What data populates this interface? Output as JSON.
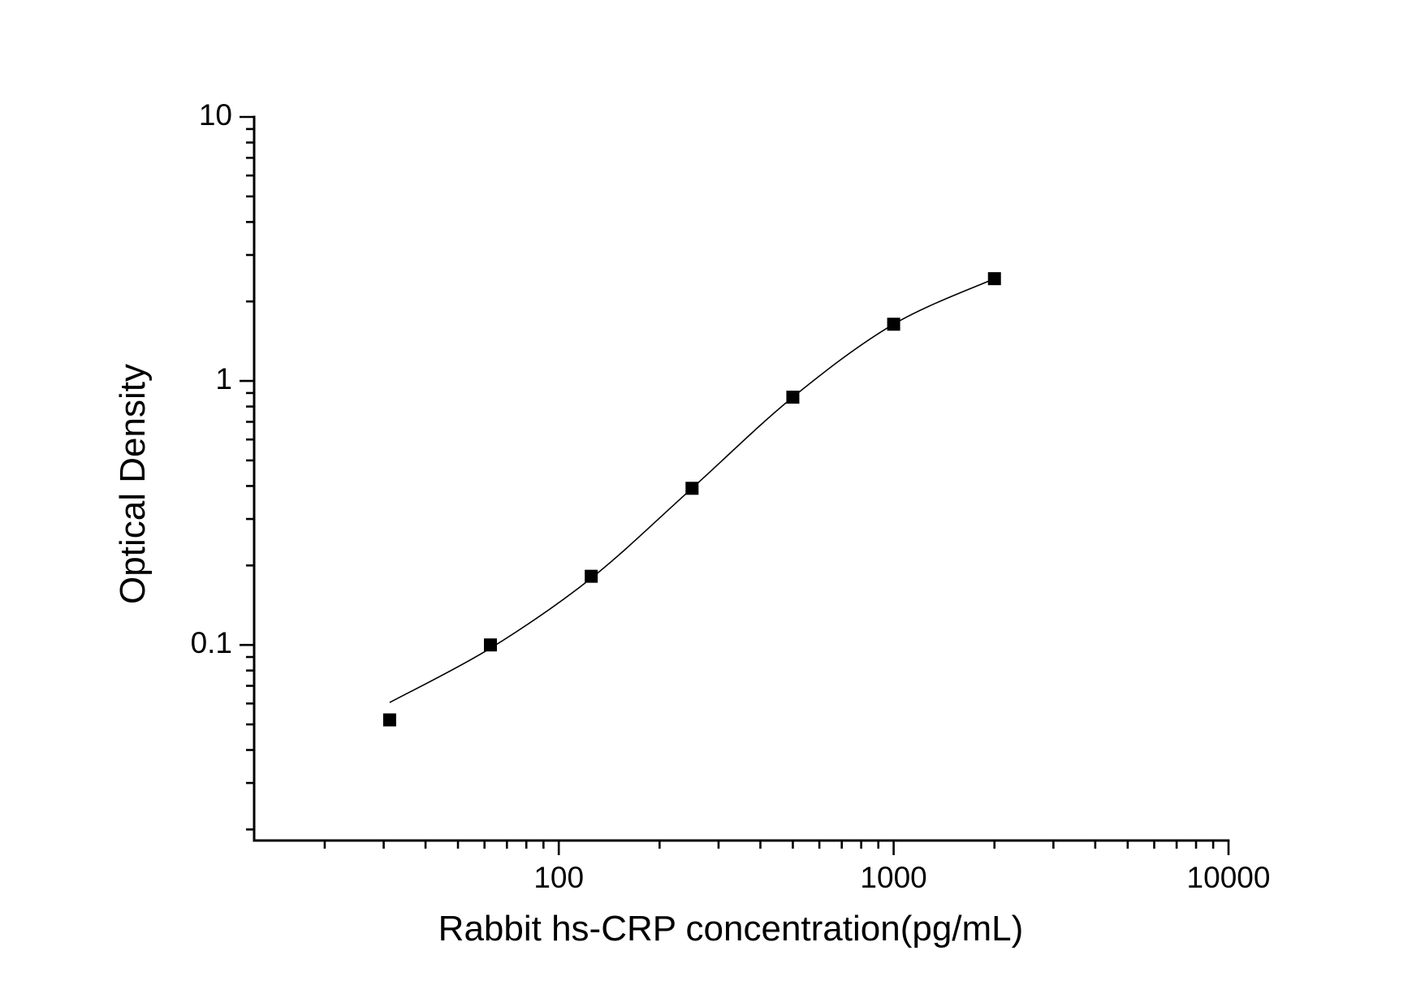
{
  "chart_data": {
    "type": "scatter",
    "title": "",
    "xlabel": "Rabbit hs-CRP concentration(pg/mL)",
    "ylabel": "Optical Density",
    "x_scale": "log",
    "y_scale": "log",
    "xlim": [
      12.31,
      10000
    ],
    "ylim": [
      0.01816,
      10
    ],
    "grid": false,
    "legend": false,
    "background": "#ffffff",
    "axis_color": "#000000",
    "x_ticks": [
      {
        "value": 100,
        "label": "100"
      },
      {
        "value": 1000,
        "label": "1000"
      },
      {
        "value": 10000,
        "label": "10000"
      }
    ],
    "y_ticks": [
      {
        "value": 0.1,
        "label": "0.1"
      },
      {
        "value": 1,
        "label": "1"
      },
      {
        "value": 10,
        "label": "10"
      }
    ],
    "minor_ticks": "log multiples 2-9 per decade on both axes",
    "series": [
      {
        "name": "ELISA standard data points",
        "marker": "filled-black-square",
        "marker_color": "#000000",
        "points": [
          {
            "x": 31.25,
            "y": 0.052
          },
          {
            "x": 62.5,
            "y": 0.1
          },
          {
            "x": 125,
            "y": 0.182
          },
          {
            "x": 250,
            "y": 0.392
          },
          {
            "x": 500,
            "y": 0.868
          },
          {
            "x": 1000,
            "y": 1.64
          },
          {
            "x": 2000,
            "y": 2.44
          }
        ]
      }
    ],
    "fit_curve": {
      "name": "4-parameter logistic fit line",
      "color": "#000000",
      "points": [
        {
          "x": 31.25,
          "y": 0.0605
        },
        {
          "x": 62.5,
          "y": 0.0972
        },
        {
          "x": 125,
          "y": 0.179
        },
        {
          "x": 250,
          "y": 0.392
        },
        {
          "x": 500,
          "y": 0.868
        },
        {
          "x": 1000,
          "y": 1.64
        },
        {
          "x": 2000,
          "y": 2.44
        }
      ]
    }
  }
}
